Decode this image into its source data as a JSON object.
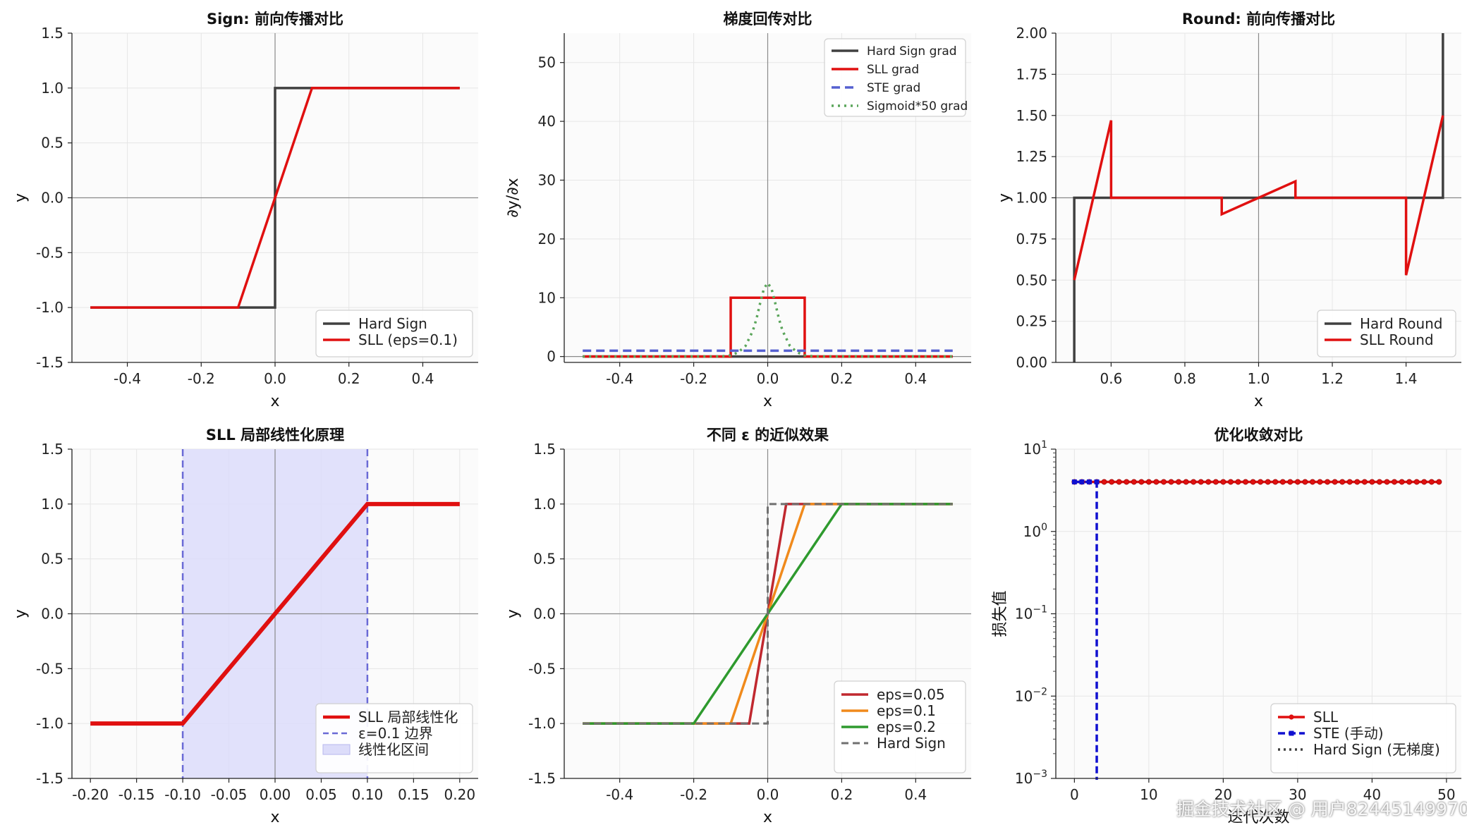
{
  "watermark": "掘金技术社区 @ 用户82445149970",
  "chart_data": [
    {
      "id": "p1",
      "type": "line",
      "title": "Sign: 前向传播对比",
      "xlabel": "x",
      "ylabel": "y",
      "xlim": [
        -0.55,
        0.55
      ],
      "ylim": [
        -1.5,
        1.5
      ],
      "xticks": [
        -0.4,
        -0.2,
        0.0,
        0.2,
        0.4
      ],
      "xtick_labels": [
        "-0.4",
        "-0.2",
        "0.0",
        "0.2",
        "0.4"
      ],
      "yticks": [
        -1.5,
        -1.0,
        -0.5,
        0.0,
        0.5,
        1.0,
        1.5
      ],
      "ytick_labels": [
        "-1.5",
        "-1.0",
        "-0.5",
        "0.0",
        "0.5",
        "1.0",
        "1.5"
      ],
      "grid": true,
      "zero_lines": {
        "x": 0,
        "y": 0
      },
      "legend": "lower-right",
      "series": [
        {
          "name": "Hard Sign",
          "color": "#404040",
          "width": 3.5,
          "dash": "",
          "points": [
            [
              -0.5,
              -1
            ],
            [
              0,
              -1
            ],
            [
              0,
              1
            ],
            [
              0.5,
              1
            ]
          ]
        },
        {
          "name": "SLL (eps=0.1)",
          "color": "#e01010",
          "width": 3.5,
          "dash": "",
          "points": [
            [
              -0.5,
              -1
            ],
            [
              -0.1,
              -1
            ],
            [
              0.1,
              1
            ],
            [
              0.5,
              1
            ]
          ]
        }
      ]
    },
    {
      "id": "p2",
      "type": "line",
      "title": "梯度回传对比",
      "xlabel": "x",
      "ylabel": "∂y/∂x",
      "xlim": [
        -0.55,
        0.55
      ],
      "ylim": [
        -1,
        55
      ],
      "xticks": [
        -0.4,
        -0.2,
        0.0,
        0.2,
        0.4
      ],
      "xtick_labels": [
        "-0.4",
        "-0.2",
        "0.0",
        "0.2",
        "0.4"
      ],
      "yticks": [
        0,
        10,
        20,
        30,
        40,
        50
      ],
      "ytick_labels": [
        "0",
        "10",
        "20",
        "30",
        "40",
        "50"
      ],
      "grid": true,
      "zero_lines": {
        "x": 0,
        "y": 0
      },
      "legend": "upper-right",
      "series": [
        {
          "name": "Hard Sign grad",
          "color": "#404040",
          "width": 3.5,
          "dash": "",
          "points": [
            [
              -0.5,
              0
            ],
            [
              0.5,
              0
            ]
          ]
        },
        {
          "name": "SLL grad",
          "color": "#e01010",
          "width": 3.5,
          "dash": "",
          "points": [
            [
              -0.5,
              0
            ],
            [
              -0.1,
              0
            ],
            [
              -0.1,
              10
            ],
            [
              0.1,
              10
            ],
            [
              0.1,
              0
            ],
            [
              0.5,
              0
            ]
          ]
        },
        {
          "name": "STE grad",
          "color": "#5560d0",
          "width": 3.5,
          "dash": "12,7",
          "points": [
            [
              -0.5,
              1
            ],
            [
              0.5,
              1
            ]
          ]
        },
        {
          "name": "Sigmoid*50 grad",
          "color": "#5aa55a",
          "width": 3.5,
          "dash": "3,6",
          "points": [
            [
              -0.5,
              0
            ],
            [
              -0.14,
              0.02
            ],
            [
              -0.12,
              0.06
            ],
            [
              -0.1,
              0.2
            ],
            [
              -0.08,
              0.7
            ],
            [
              -0.06,
              1.8
            ],
            [
              -0.04,
              4.4
            ],
            [
              -0.03,
              6.5
            ],
            [
              -0.02,
              9.2
            ],
            [
              -0.01,
              11.6
            ],
            [
              0,
              12.5
            ],
            [
              0.01,
              11.6
            ],
            [
              0.02,
              9.2
            ],
            [
              0.03,
              6.5
            ],
            [
              0.04,
              4.4
            ],
            [
              0.06,
              1.8
            ],
            [
              0.08,
              0.7
            ],
            [
              0.1,
              0.2
            ],
            [
              0.12,
              0.06
            ],
            [
              0.14,
              0.02
            ],
            [
              0.5,
              0
            ]
          ]
        }
      ]
    },
    {
      "id": "p3",
      "type": "line",
      "title": "Round: 前向传播对比",
      "xlabel": "x",
      "ylabel": "y",
      "xlim": [
        0.45,
        1.55
      ],
      "ylim": [
        0,
        2
      ],
      "xticks": [
        0.6,
        0.8,
        1.0,
        1.2,
        1.4
      ],
      "xtick_labels": [
        "0.6",
        "0.8",
        "1.0",
        "1.2",
        "1.4"
      ],
      "yticks": [
        0,
        0.25,
        0.5,
        0.75,
        1.0,
        1.25,
        1.5,
        1.75,
        2.0
      ],
      "ytick_labels": [
        "0.00",
        "0.25",
        "0.50",
        "0.75",
        "1.00",
        "1.25",
        "1.50",
        "1.75",
        "2.00"
      ],
      "grid": true,
      "zero_lines": {
        "x": 1.0,
        "y": 1.0
      },
      "legend": "lower-right",
      "series": [
        {
          "name": "Hard Round",
          "color": "#404040",
          "width": 3.5,
          "dash": "",
          "points": [
            [
              0.5,
              0
            ],
            [
              0.5,
              1
            ],
            [
              1.5,
              1
            ],
            [
              1.5,
              2
            ]
          ]
        },
        {
          "name": "SLL Round",
          "color": "#e01010",
          "width": 3.5,
          "dash": "",
          "points": [
            [
              0.5,
              0.5
            ],
            [
              0.6,
              1.47
            ],
            [
              0.6,
              1.0
            ],
            [
              0.9,
              1.0
            ],
            [
              0.9,
              0.9
            ],
            [
              1.1,
              1.1
            ],
            [
              1.1,
              1.0
            ],
            [
              1.4,
              1.0
            ],
            [
              1.4,
              0.53
            ],
            [
              1.5,
              1.5
            ]
          ]
        }
      ]
    },
    {
      "id": "p4",
      "type": "line",
      "title": "SLL 局部线性化原理",
      "xlabel": "x",
      "ylabel": "y",
      "xlim": [
        -0.22,
        0.22
      ],
      "ylim": [
        -1.5,
        1.5
      ],
      "xticks": [
        -0.2,
        -0.15,
        -0.1,
        -0.05,
        0.0,
        0.05,
        0.1,
        0.15,
        0.2
      ],
      "xtick_labels": [
        "-0.20",
        "-0.15",
        "-0.10",
        "-0.05",
        "0.00",
        "0.05",
        "0.10",
        "0.15",
        "0.20"
      ],
      "yticks": [
        -1.5,
        -1.0,
        -0.5,
        0.0,
        0.5,
        1.0,
        1.5
      ],
      "ytick_labels": [
        "-1.5",
        "-1.0",
        "-0.5",
        "0.0",
        "0.5",
        "1.0",
        "1.5"
      ],
      "grid": true,
      "zero_lines": {
        "x": 0,
        "y": 0
      },
      "legend": "lower-right",
      "band": {
        "x": [
          -0.1,
          0.1
        ],
        "label": "线性化区间",
        "color": "#dcdcfa"
      },
      "vlines": {
        "x": [
          -0.1,
          0.1
        ],
        "label": "ε=0.1 边界",
        "color": "#6a6ad6"
      },
      "series": [
        {
          "name": "SLL 局部线性化",
          "color": "#e01010",
          "width": 6,
          "dash": "",
          "points": [
            [
              -0.2,
              -1
            ],
            [
              -0.1,
              -1
            ],
            [
              0.1,
              1
            ],
            [
              0.2,
              1
            ]
          ]
        }
      ]
    },
    {
      "id": "p5",
      "type": "line",
      "title": "不同 ε 的近似效果",
      "xlabel": "x",
      "ylabel": "y",
      "xlim": [
        -0.55,
        0.55
      ],
      "ylim": [
        -1.5,
        1.5
      ],
      "xticks": [
        -0.4,
        -0.2,
        0.0,
        0.2,
        0.4
      ],
      "xtick_labels": [
        "-0.4",
        "-0.2",
        "0.0",
        "0.2",
        "0.4"
      ],
      "yticks": [
        -1.5,
        -1.0,
        -0.5,
        0.0,
        0.5,
        1.0,
        1.5
      ],
      "ytick_labels": [
        "-1.5",
        "-1.0",
        "-0.5",
        "0.0",
        "0.5",
        "1.0",
        "1.5"
      ],
      "grid": true,
      "zero_lines": {
        "x": 0,
        "y": 0
      },
      "legend": "lower-right",
      "series": [
        {
          "name": "eps=0.05",
          "color": "#c0282f",
          "width": 3.5,
          "dash": "",
          "points": [
            [
              -0.5,
              -1
            ],
            [
              -0.05,
              -1
            ],
            [
              0.05,
              1
            ],
            [
              0.5,
              1
            ]
          ]
        },
        {
          "name": "eps=0.1",
          "color": "#f08a1c",
          "width": 3.5,
          "dash": "",
          "points": [
            [
              -0.5,
              -1
            ],
            [
              -0.1,
              -1
            ],
            [
              0.1,
              1
            ],
            [
              0.5,
              1
            ]
          ]
        },
        {
          "name": "eps=0.2",
          "color": "#2e9a2e",
          "width": 3.5,
          "dash": "",
          "points": [
            [
              -0.5,
              -1
            ],
            [
              -0.2,
              -1
            ],
            [
              0.2,
              1
            ],
            [
              0.5,
              1
            ]
          ]
        },
        {
          "name": "Hard Sign",
          "color": "#707070",
          "width": 3,
          "dash": "10,6",
          "points": [
            [
              -0.5,
              -1
            ],
            [
              0,
              -1
            ],
            [
              0,
              1
            ],
            [
              0.5,
              1
            ]
          ]
        }
      ]
    },
    {
      "id": "p6",
      "type": "line",
      "scale_y": "log",
      "title": "优化收敛对比",
      "xlabel": "迭代次数",
      "ylabel": "损失值",
      "xlim": [
        -2.5,
        52
      ],
      "ylim_exp": [
        -3,
        1
      ],
      "xticks": [
        0,
        10,
        20,
        30,
        40,
        50
      ],
      "xtick_labels": [
        "0",
        "10",
        "20",
        "30",
        "40",
        "50"
      ],
      "ytick_exps": [
        -3,
        -2,
        -1,
        0,
        1
      ],
      "grid": true,
      "legend": "lower-right",
      "series": [
        {
          "name": "SLL",
          "color": "#e01010",
          "width": 3.5,
          "dash": "",
          "marker": "circle",
          "x": [
            0,
            1,
            2,
            3,
            4,
            5,
            6,
            7,
            8,
            9,
            10,
            11,
            12,
            13,
            14,
            15,
            16,
            17,
            18,
            19,
            20,
            21,
            22,
            23,
            24,
            25,
            26,
            27,
            28,
            29,
            30,
            31,
            32,
            33,
            34,
            35,
            36,
            37,
            38,
            39,
            40,
            41,
            42,
            43,
            44,
            45,
            46,
            47,
            48,
            49
          ],
          "y_const": 4
        },
        {
          "name": "STE (手动)",
          "color": "#1010d0",
          "width": 3.5,
          "dash": "10,5",
          "marker": "square",
          "x": [
            0,
            1,
            2,
            3
          ],
          "y_const": 4,
          "drop_at": 3
        },
        {
          "name": "Hard Sign (无梯度)",
          "color": "#404040",
          "width": 3.5,
          "dash": "3,5",
          "marker": "",
          "x": [],
          "y_const": 4
        }
      ]
    }
  ]
}
